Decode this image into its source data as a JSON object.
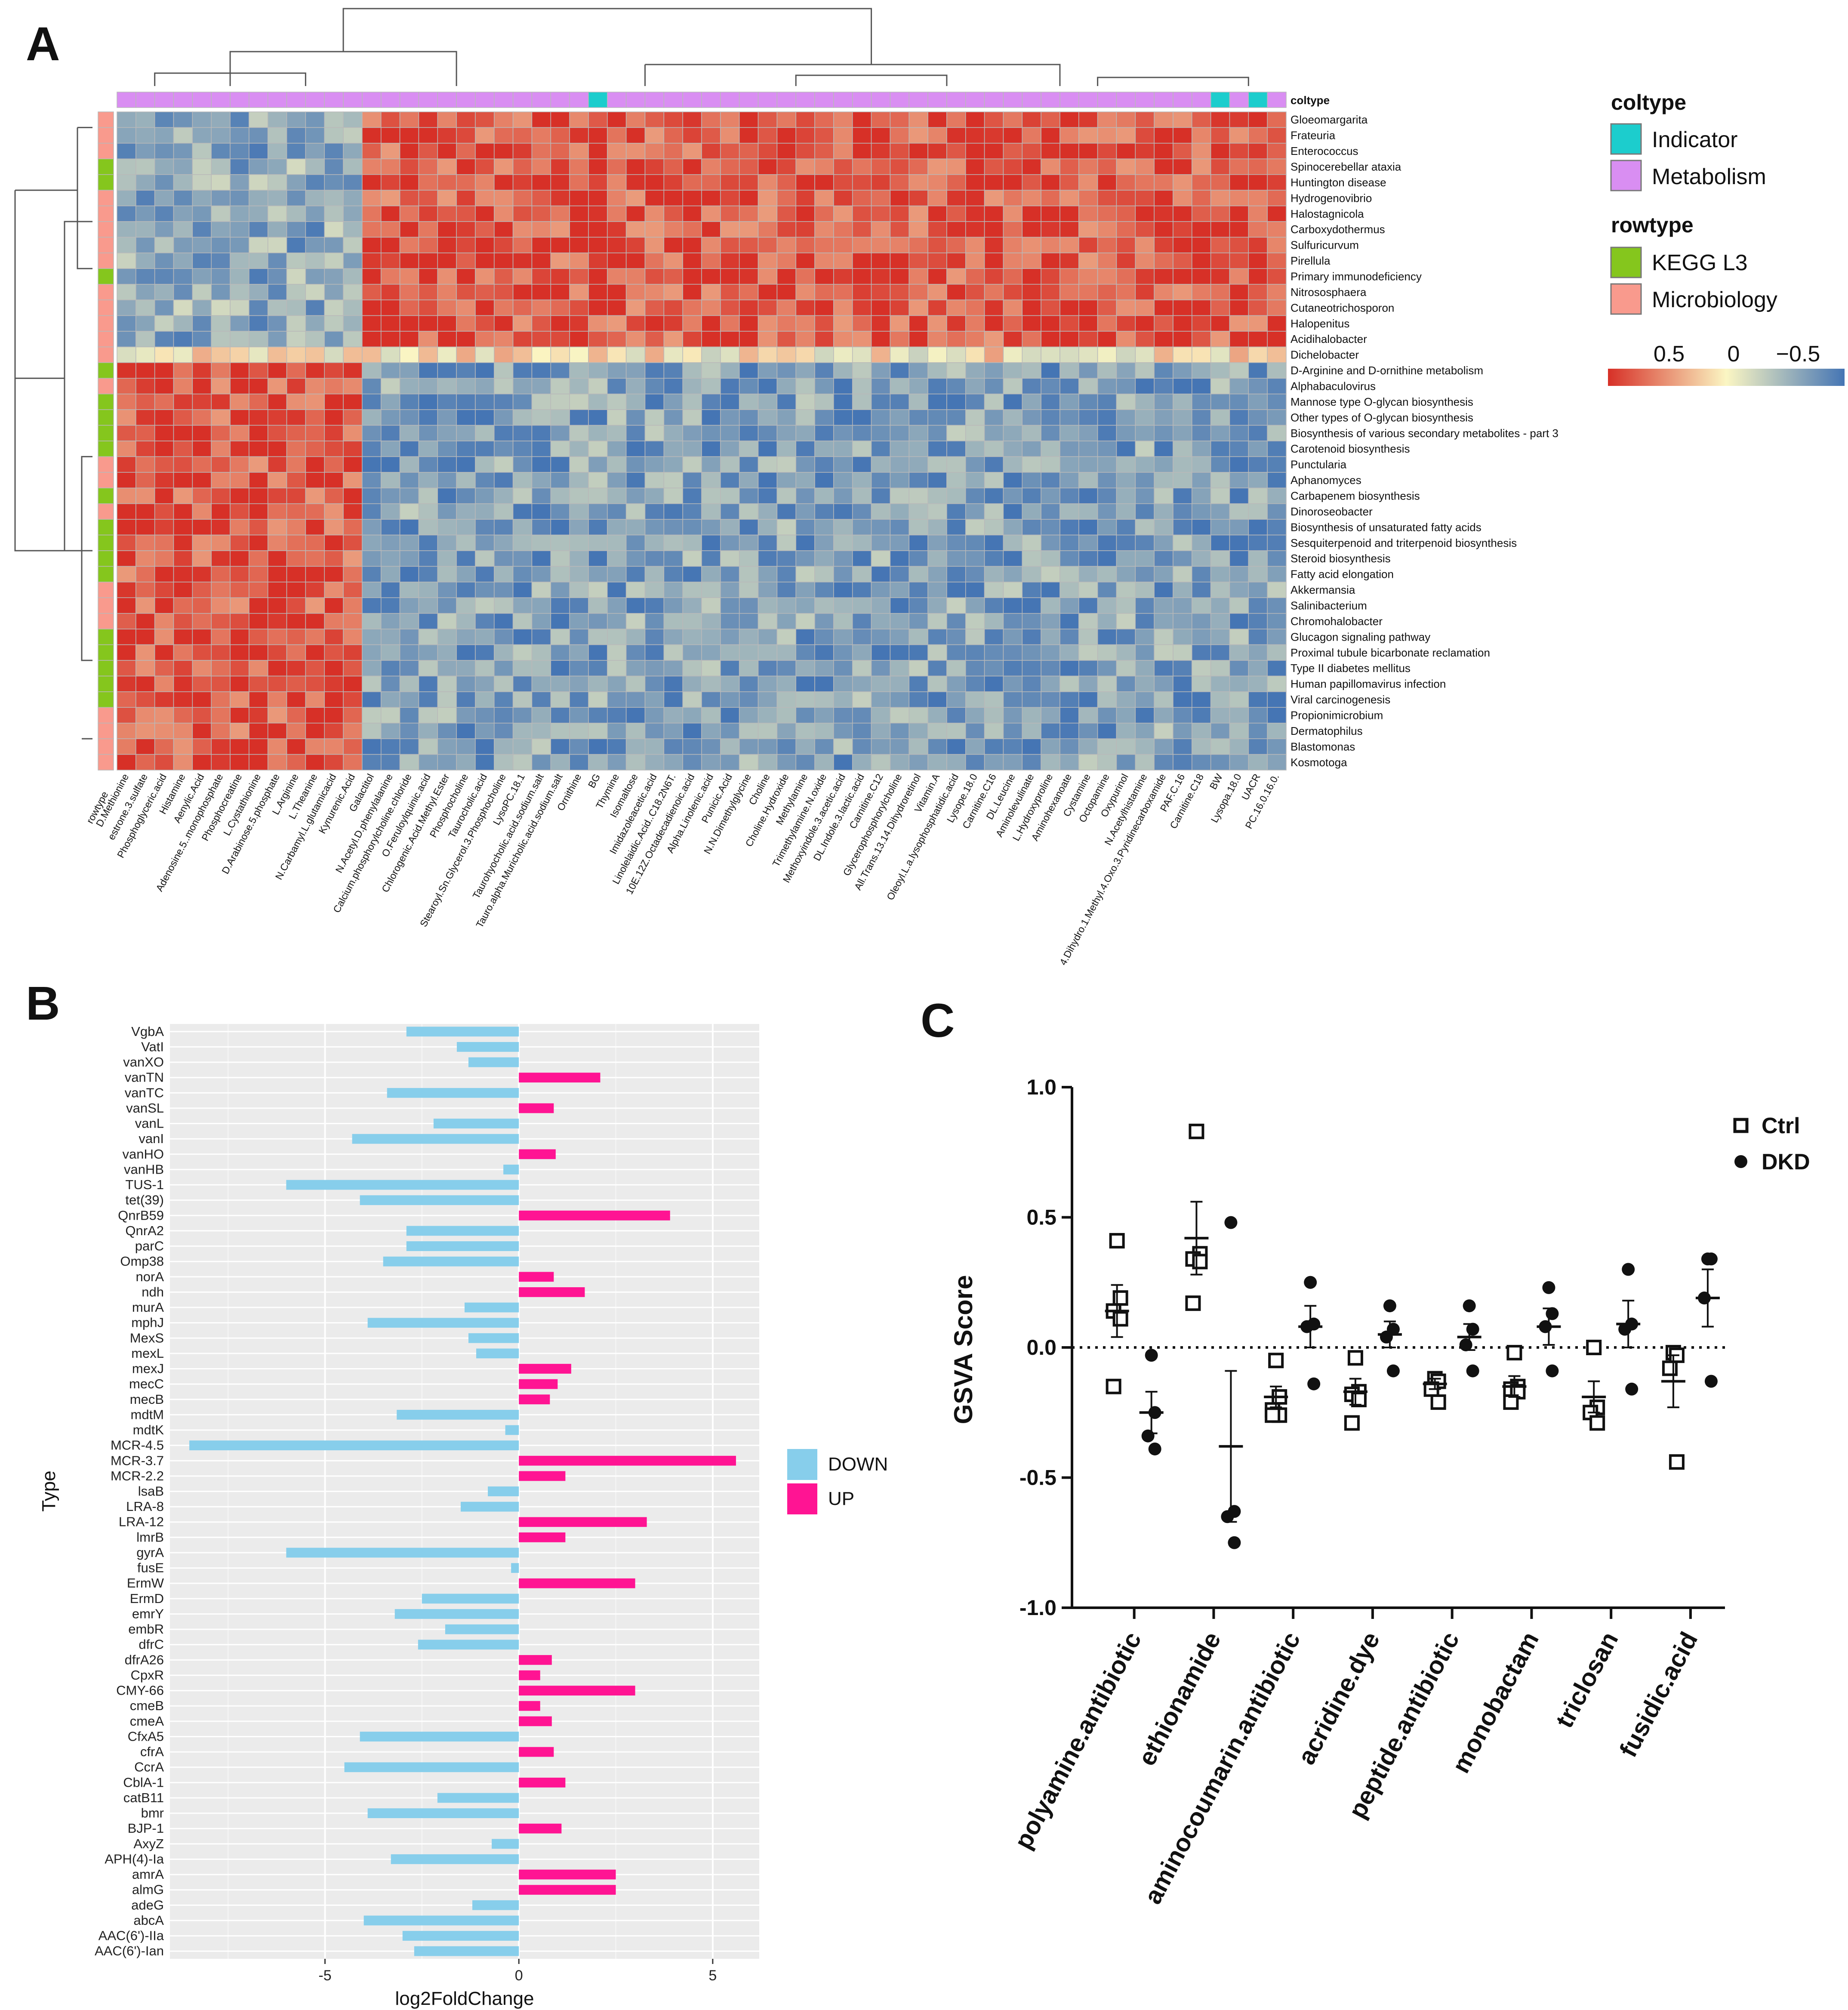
{
  "panels": {
    "a": "A",
    "b": "B",
    "c": "C"
  },
  "chart_data": [
    {
      "type": "heatmap",
      "title": "",
      "columns": [
        "D.Methionine",
        "estrone.3.sulfate",
        "Phosphoglyceric.acid",
        "Histamine",
        "Aenylic.Acid",
        "Adenosine.5..monophosphate",
        "Phosphocreatine",
        "L.Cystathionine",
        "D.Arabinose.5.phosphate",
        "L.Arginine",
        "L.Theanine",
        "N.Carbamyl.L.glutamicacid",
        "Kynurenic.Acid",
        "Galactitol",
        "N.Acetyl.D.phenylalanine",
        "Calcium.phosphorylcholine.chloride",
        "O.Feruloylquinic.acid",
        "Chlorogenic.Acid.Methyl.Ester",
        "Phosphocholine",
        "Taurocholic.acid",
        "Stearoyl.Sn.Glycerol.3.Phosphocholine",
        "LysoPC.18.1",
        "Taurohyocholic.acid.sodium.salt",
        "Tauro.alpha.Muricholic.acid.sodium.salt",
        "Ornithine",
        "BG",
        "Thymine",
        "Isomaltose",
        "Imidazoleacetic.acid",
        "Linolelaidic.Acid..C18.2N6T.",
        "10E.12Z.Octadecadienoic.acid",
        "Alpha.Linolenic.acid",
        "Punicic.Acid",
        "N.N.Dimethylglycine",
        "Choline",
        "Choline.Hydroxide",
        "Methylamine",
        "Trimethylamine.N.oxide",
        "Methoxyindole.3.acetic.acid",
        "DL.Indole.3.lactic.acid",
        "Carnitine.C12",
        "Glycerophosphorylcholine",
        "All.Trans.13.14.Dihydroretinol",
        "Vitamin.A",
        "Oleoyl.L.a.lysophosphatidic.acid",
        "Lysope.18.0",
        "Carnitine.C16",
        "DL.Leucine",
        "Aminolevulinate",
        "L.Hydroxyproline",
        "Aminohexanoate",
        "Cystamine",
        "Octopamine",
        "Oxypurinol",
        "N.Acetylhistamine",
        "4.Dihydro.1.Methyl.4.Oxo.3.Pyridinecarboxamide",
        "PAF.C.16",
        "Carnitine.C18",
        "BW",
        "Lysopa.18.0",
        "UACR",
        "PC.16.0.16.0."
      ],
      "coltype_indicator_columns": [
        "BG",
        "BW",
        "UACR"
      ],
      "rows": [
        {
          "name": "Gloeomargarita",
          "rowtype": "Microbiology"
        },
        {
          "name": "Frateuria",
          "rowtype": "Microbiology"
        },
        {
          "name": "Enterococcus",
          "rowtype": "Microbiology"
        },
        {
          "name": "Spinocerebellar ataxia",
          "rowtype": "KEGG L3"
        },
        {
          "name": "Huntington disease",
          "rowtype": "KEGG L3"
        },
        {
          "name": "Hydrogenovibrio",
          "rowtype": "Microbiology"
        },
        {
          "name": "Halostagnicola",
          "rowtype": "Microbiology"
        },
        {
          "name": "Carboxydothermus",
          "rowtype": "Microbiology"
        },
        {
          "name": "Sulfuricurvum",
          "rowtype": "Microbiology"
        },
        {
          "name": "Pirellula",
          "rowtype": "Microbiology"
        },
        {
          "name": "Primary immunodeficiency",
          "rowtype": "KEGG L3"
        },
        {
          "name": "Nitrososphaera",
          "rowtype": "Microbiology"
        },
        {
          "name": "Cutaneotrichosporon",
          "rowtype": "Microbiology"
        },
        {
          "name": "Halopenitus",
          "rowtype": "Microbiology"
        },
        {
          "name": "Acidihalobacter",
          "rowtype": "Microbiology"
        },
        {
          "name": "Dichelobacter",
          "rowtype": "Microbiology"
        },
        {
          "name": "D-Arginine and D-ornithine metabolism",
          "rowtype": "KEGG L3"
        },
        {
          "name": "Alphabaculovirus",
          "rowtype": "Microbiology"
        },
        {
          "name": "Mannose type O-glycan biosynthesis",
          "rowtype": "KEGG L3"
        },
        {
          "name": "Other types of O-glycan biosynthesis",
          "rowtype": "KEGG L3"
        },
        {
          "name": "Biosynthesis of various secondary metabolites - part 3",
          "rowtype": "KEGG L3"
        },
        {
          "name": "Carotenoid biosynthesis",
          "rowtype": "KEGG L3"
        },
        {
          "name": "Punctularia",
          "rowtype": "Microbiology"
        },
        {
          "name": "Aphanomyces",
          "rowtype": "Microbiology"
        },
        {
          "name": "Carbapenem biosynthesis",
          "rowtype": "KEGG L3"
        },
        {
          "name": "Dinoroseobacter",
          "rowtype": "Microbiology"
        },
        {
          "name": "Biosynthesis of unsaturated fatty acids",
          "rowtype": "KEGG L3"
        },
        {
          "name": "Sesquiterpenoid and triterpenoid biosynthesis",
          "rowtype": "KEGG L3"
        },
        {
          "name": "Steroid biosynthesis",
          "rowtype": "KEGG L3"
        },
        {
          "name": "Fatty acid elongation",
          "rowtype": "KEGG L3"
        },
        {
          "name": "Akkermansia",
          "rowtype": "Microbiology"
        },
        {
          "name": "Salinibacterium",
          "rowtype": "Microbiology"
        },
        {
          "name": "Chromohalobacter",
          "rowtype": "Microbiology"
        },
        {
          "name": "Glucagon signaling pathway",
          "rowtype": "KEGG L3"
        },
        {
          "name": "Proximal tubule bicarbonate reclamation",
          "rowtype": "KEGG L3"
        },
        {
          "name": "Type II diabetes mellitus",
          "rowtype": "KEGG L3"
        },
        {
          "name": "Human papillomavirus infection",
          "rowtype": "KEGG L3"
        },
        {
          "name": "Viral carcinogenesis",
          "rowtype": "KEGG L3"
        },
        {
          "name": "Propionimicrobium",
          "rowtype": "Microbiology"
        },
        {
          "name": "Dermatophilus",
          "rowtype": "Microbiology"
        },
        {
          "name": "Blastomonas",
          "rowtype": "Microbiology"
        },
        {
          "name": "Kosmotoga",
          "rowtype": "Microbiology"
        }
      ],
      "block_values": {
        "upper_left": -0.35,
        "upper_right": 0.5,
        "lower_left": 0.5,
        "lower_right": -0.4,
        "boundary_row": 0.05
      },
      "annotation_labels": {
        "rowtype_axis": "rowtype",
        "coltype_axis": "coltype"
      },
      "legend": {
        "coltype_title": "coltype",
        "coltype_items": [
          {
            "label": "Indicator",
            "color": "#1ccdcd"
          },
          {
            "label": "Metabolism",
            "color": "#d98ef2"
          }
        ],
        "rowtype_title": "rowtype",
        "rowtype_items": [
          {
            "label": "KEGG L3",
            "color": "#85c61d"
          },
          {
            "label": "Microbiology",
            "color": "#f99a8d"
          }
        ],
        "scale_ticks": [
          "0.5",
          "0",
          "−0.5"
        ]
      },
      "colors": {
        "high": "#d73027",
        "mid": "#fbf6c3",
        "low": "#4575b4",
        "indicator": "#1ccdcd",
        "metabolism": "#d98ef2",
        "kegg": "#85c61d",
        "micro": "#f99a8d"
      }
    },
    {
      "type": "bar",
      "orientation": "horizontal",
      "xlabel": "log2FoldChange",
      "ylabel": "Type",
      "xlim": [
        -9,
        6.2
      ],
      "xticks": [
        -5,
        0,
        5
      ],
      "xtick_labels": [
        "-5",
        "0",
        "5"
      ],
      "legend": [
        {
          "label": "DOWN",
          "color": "#87ceeb"
        },
        {
          "label": "UP",
          "color": "#ff1493"
        }
      ],
      "categories": [
        "VgbA",
        "VatI",
        "vanXO",
        "vanTN",
        "vanTC",
        "vanSL",
        "vanL",
        "vanI",
        "vanHO",
        "vanHB",
        "TUS-1",
        "tet(39)",
        "QnrB59",
        "QnrA2",
        "parC",
        "Omp38",
        "norA",
        "ndh",
        "murA",
        "mphJ",
        "MexS",
        "mexL",
        "mexJ",
        "mecC",
        "mecB",
        "mdtM",
        "mdtK",
        "MCR-4.5",
        "MCR-3.7",
        "MCR-2.2",
        "lsaB",
        "LRA-8",
        "LRA-12",
        "lmrB",
        "gyrA",
        "fusE",
        "ErmW",
        "ErmD",
        "emrY",
        "embR",
        "dfrC",
        "dfrA26",
        "CpxR",
        "CMY-66",
        "cmeB",
        "cmeA",
        "CfxA5",
        "cfrA",
        "CcrA",
        "CblA-1",
        "catB11",
        "bmr",
        "BJP-1",
        "AxyZ",
        "APH(4)-Ia",
        "amrA",
        "almG",
        "adeG",
        "abcA",
        "AAC(6')-IIa",
        "AAC(6')-Ian"
      ],
      "values": [
        -2.9,
        -1.6,
        -1.3,
        2.1,
        -3.4,
        0.9,
        -2.2,
        -4.3,
        0.95,
        -0.4,
        -6.0,
        -4.1,
        3.9,
        -2.9,
        -2.9,
        -3.5,
        0.9,
        1.7,
        -1.4,
        -3.9,
        -1.3,
        -1.1,
        1.35,
        1.0,
        0.8,
        -3.15,
        -0.35,
        -8.5,
        5.6,
        1.2,
        -0.8,
        -1.5,
        3.3,
        1.2,
        -6.0,
        -0.2,
        3.0,
        -2.5,
        -3.2,
        -1.9,
        -2.6,
        0.85,
        0.55,
        3.0,
        0.55,
        0.85,
        -4.1,
        0.9,
        -4.5,
        1.2,
        -2.1,
        -3.9,
        1.1,
        -0.7,
        -3.3,
        2.5,
        2.5,
        -1.2,
        -4.0,
        -3.0,
        -2.7
      ]
    },
    {
      "type": "scatter",
      "ylabel": "GSVA Score",
      "ylim": [
        -1.0,
        1.0
      ],
      "yticks": [
        1.0,
        0.5,
        0.0,
        -0.5,
        -1.0
      ],
      "ytick_labels": [
        "1.0",
        "0.5",
        "0.0",
        "-0.5",
        "-1.0"
      ],
      "reference_line": 0.0,
      "categories": [
        "polyamine.antibiotic",
        "ethionamide",
        "aminocoumarin.antibiotic",
        "acridine.dye",
        "peptide.antibiotic",
        "monobactam",
        "triclosan",
        "fusidic.acid"
      ],
      "legend": [
        "Ctrl",
        "DKD"
      ],
      "series": [
        {
          "name": "Ctrl",
          "marker": "open-square",
          "points": [
            [
              0.41,
              0.19,
              0.14,
              0.11,
              -0.15
            ],
            [
              0.83,
              0.36,
              0.34,
              0.33,
              0.17
            ],
            [
              -0.05,
              -0.19,
              -0.24,
              -0.26,
              -0.26
            ],
            [
              -0.04,
              -0.17,
              -0.18,
              -0.2,
              -0.29
            ],
            [
              -0.12,
              -0.13,
              -0.16,
              -0.21
            ],
            [
              -0.02,
              -0.15,
              -0.16,
              -0.17,
              -0.21
            ],
            [
              0.0,
              -0.23,
              -0.25,
              -0.29
            ],
            [
              -0.02,
              -0.03,
              -0.08,
              -0.44
            ]
          ],
          "mean": [
            0.14,
            0.42,
            -0.19,
            -0.17,
            -0.14,
            -0.15,
            -0.19,
            -0.13
          ],
          "sem": [
            0.1,
            0.14,
            0.04,
            0.05,
            0.02,
            0.04,
            0.06,
            0.1
          ]
        },
        {
          "name": "DKD",
          "marker": "filled-circle",
          "points": [
            [
              -0.03,
              -0.25,
              -0.34,
              -0.39
            ],
            [
              0.48,
              -0.63,
              -0.65,
              -0.75
            ],
            [
              0.25,
              0.09,
              0.08,
              -0.14
            ],
            [
              0.16,
              0.07,
              0.04,
              -0.09
            ],
            [
              0.16,
              0.07,
              0.01,
              -0.09
            ],
            [
              0.23,
              0.13,
              0.08,
              -0.09
            ],
            [
              0.3,
              0.09,
              0.07,
              -0.16
            ],
            [
              0.34,
              0.34,
              0.19,
              -0.13
            ]
          ],
          "mean": [
            -0.25,
            -0.38,
            0.08,
            0.05,
            0.04,
            0.08,
            0.09,
            0.19
          ],
          "sem": [
            0.08,
            0.29,
            0.08,
            0.05,
            0.05,
            0.07,
            0.09,
            0.11
          ]
        }
      ]
    }
  ]
}
